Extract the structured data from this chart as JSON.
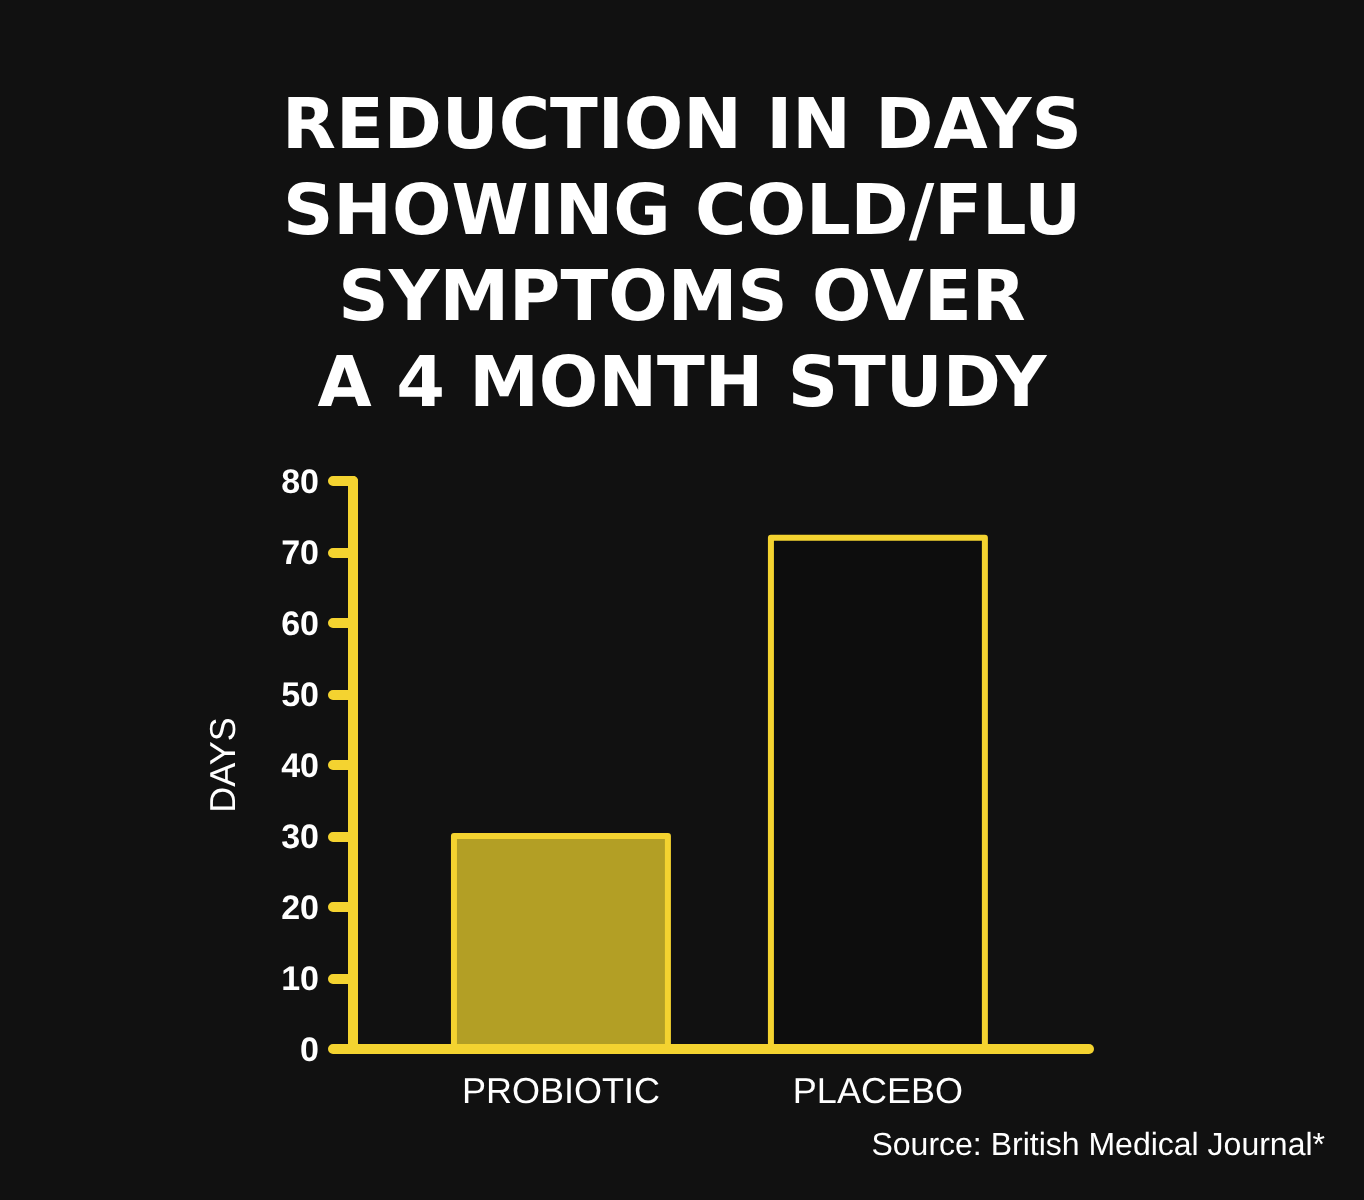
{
  "chart_data": {
    "type": "bar",
    "title": "REDUCTION IN DAYS\nSHOWING COLD/FLU\nSYMPTOMS OVER\nA 4 MONTH STUDY",
    "ylabel": "DAYS",
    "categories": [
      "PROBIOTIC",
      "PLACEBO"
    ],
    "values": [
      30,
      72
    ],
    "colors": [
      "#b39f25",
      "#0d0d0d"
    ],
    "ylim": [
      0,
      80
    ],
    "yticks": [
      0,
      10,
      20,
      30,
      40,
      50,
      60,
      70,
      80
    ],
    "annotations": [
      "Source: British Medical Journal*"
    ]
  }
}
